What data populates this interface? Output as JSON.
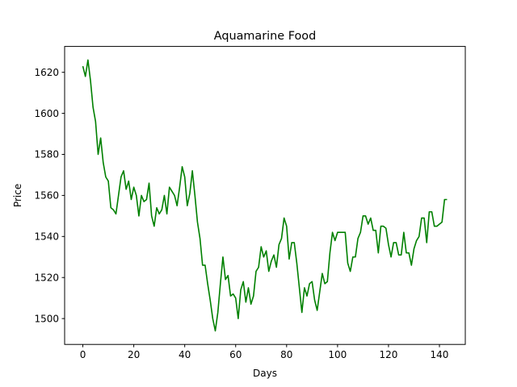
{
  "chart_data": {
    "type": "line",
    "title": "Aquamarine Food",
    "xlabel": "Days",
    "ylabel": "Price",
    "xlim": [
      -7.15,
      150.15
    ],
    "ylim": [
      1487.4,
      1632.6
    ],
    "xticks": [
      0,
      20,
      40,
      60,
      80,
      100,
      120,
      140
    ],
    "yticks": [
      1500,
      1520,
      1540,
      1560,
      1580,
      1600,
      1620
    ],
    "grid": false,
    "legend": "none",
    "series": [
      {
        "color": "#008000",
        "x": [
          0,
          1,
          2,
          3,
          4,
          5,
          6,
          7,
          8,
          9,
          10,
          11,
          12,
          13,
          14,
          15,
          16,
          17,
          18,
          19,
          20,
          21,
          22,
          23,
          24,
          25,
          26,
          27,
          28,
          29,
          30,
          31,
          32,
          33,
          34,
          35,
          36,
          37,
          38,
          39,
          40,
          41,
          42,
          43,
          44,
          45,
          46,
          47,
          48,
          49,
          50,
          51,
          52,
          53,
          54,
          55,
          56,
          57,
          58,
          59,
          60,
          61,
          62,
          63,
          64,
          65,
          66,
          67,
          68,
          69,
          70,
          71,
          72,
          73,
          74,
          75,
          76,
          77,
          78,
          79,
          80,
          81,
          82,
          83,
          84,
          85,
          86,
          87,
          88,
          89,
          90,
          91,
          92,
          93,
          94,
          95,
          96,
          97,
          98,
          99,
          100,
          101,
          102,
          103,
          104,
          105,
          106,
          107,
          108,
          109,
          110,
          111,
          112,
          113,
          114,
          115,
          116,
          117,
          118,
          119,
          120,
          121,
          122,
          123,
          124,
          125,
          126,
          127,
          128,
          129,
          130,
          131,
          132,
          133,
          134,
          135,
          136,
          137,
          138,
          139,
          140,
          141,
          142,
          143
        ],
        "y": [
          1623,
          1618,
          1626,
          1616,
          1603,
          1596,
          1580,
          1588,
          1576,
          1569,
          1567,
          1554,
          1553,
          1551,
          1560,
          1569,
          1572,
          1563,
          1567,
          1558,
          1564,
          1560,
          1550,
          1560,
          1557,
          1558,
          1566,
          1550,
          1545,
          1554,
          1551,
          1553,
          1560,
          1551,
          1564,
          1562,
          1560,
          1555,
          1564,
          1574,
          1569,
          1555,
          1561,
          1572,
          1560,
          1547,
          1539,
          1526,
          1526,
          1517,
          1509,
          1500,
          1494,
          1503,
          1517,
          1530,
          1519,
          1521,
          1511,
          1512,
          1510,
          1500,
          1514,
          1518,
          1508,
          1515,
          1507,
          1511,
          1523,
          1525,
          1535,
          1530,
          1533,
          1523,
          1528,
          1531,
          1525,
          1536,
          1539,
          1549,
          1545,
          1529,
          1537,
          1537,
          1527,
          1515,
          1503,
          1515,
          1511,
          1517,
          1518,
          1509,
          1504,
          1513,
          1522,
          1517,
          1518,
          1532,
          1542,
          1538,
          1542,
          1542,
          1542,
          1542,
          1527,
          1523,
          1530,
          1530,
          1539,
          1542,
          1550,
          1550,
          1546,
          1549,
          1543,
          1543,
          1532,
          1545,
          1545,
          1544,
          1536,
          1530,
          1537,
          1537,
          1531,
          1531,
          1542,
          1532,
          1532,
          1526,
          1534,
          1538,
          1540,
          1549,
          1549,
          1537,
          1552,
          1552,
          1545,
          1545,
          1546,
          1547,
          1558,
          1558
        ]
      }
    ]
  }
}
